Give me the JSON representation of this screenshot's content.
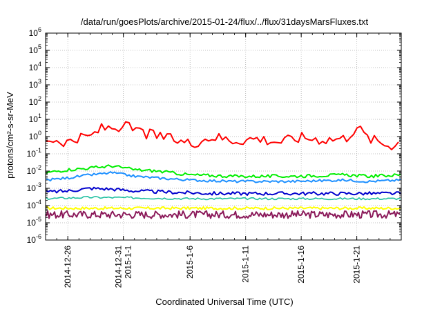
{
  "chart_data": {
    "type": "line",
    "title": "/data/run/goesPlots/archive/2015-01-24/flux/../flux/31daysMarsFluxes.txt",
    "xlabel": "Coordinated Universal Time (UTC)",
    "ylabel": "protons/cm²-s-sr-MeV",
    "yscale": "log",
    "ylim": [
      1e-06,
      1000000.0
    ],
    "xlim": [
      "2014-12-24",
      "2015-01-25"
    ],
    "grid": true,
    "yticks": [
      {
        "base": "10",
        "exp": "-6"
      },
      {
        "base": "10",
        "exp": "-5"
      },
      {
        "base": "10",
        "exp": "-4"
      },
      {
        "base": "10",
        "exp": "-3"
      },
      {
        "base": "10",
        "exp": "-2"
      },
      {
        "base": "10",
        "exp": "-1"
      },
      {
        "base": "10",
        "exp": "0"
      },
      {
        "base": "10",
        "exp": "1"
      },
      {
        "base": "10",
        "exp": "2"
      },
      {
        "base": "10",
        "exp": "3"
      },
      {
        "base": "10",
        "exp": "4"
      },
      {
        "base": "10",
        "exp": "5"
      },
      {
        "base": "10",
        "exp": "6"
      }
    ],
    "xticks": [
      {
        "lines": [
          "2014-12-26"
        ],
        "date": "2014-12-26"
      },
      {
        "lines": [
          "2014-12-31",
          "2015-1-1"
        ],
        "date": "2014-12-31"
      },
      {
        "lines": [
          "2015-1-6"
        ],
        "date": "2015-01-06"
      },
      {
        "lines": [
          "2015-1-11"
        ],
        "date": "2015-01-11"
      },
      {
        "lines": [
          "2015-1-16"
        ],
        "date": "2015-01-16"
      },
      {
        "lines": [
          "2015-1-21"
        ],
        "date": "2015-01-21"
      }
    ],
    "series": [
      {
        "color": "#ff0000",
        "x": [
          "2014-12-24",
          "2014-12-26",
          "2014-12-28",
          "2014-12-29",
          "2014-12-31",
          "2015-01-02",
          "2015-01-04",
          "2015-01-06",
          "2015-01-08",
          "2015-01-10",
          "2015-01-12",
          "2015-01-14",
          "2015-01-16",
          "2015-01-18",
          "2015-01-20",
          "2015-01-21",
          "2015-01-22",
          "2015-01-24",
          "2015-01-25"
        ],
        "values": [
          0.8,
          0.5,
          1.0,
          3.0,
          4.0,
          1.5,
          0.8,
          0.4,
          1.0,
          0.6,
          0.8,
          0.5,
          0.9,
          0.7,
          0.8,
          4.0,
          0.8,
          0.3,
          0.6
        ]
      },
      {
        "color": "#00ee00",
        "x": [
          "2014-12-24",
          "2014-12-26",
          "2014-12-28",
          "2014-12-30",
          "2015-01-01",
          "2015-01-03",
          "2015-01-06",
          "2015-01-10",
          "2015-01-15",
          "2015-01-20",
          "2015-01-22",
          "2015-01-25"
        ],
        "values": [
          0.008,
          0.012,
          0.015,
          0.02,
          0.012,
          0.01,
          0.006,
          0.005,
          0.005,
          0.006,
          0.005,
          0.006
        ]
      },
      {
        "color": "#1e90ff",
        "x": [
          "2014-12-24",
          "2014-12-26",
          "2014-12-28",
          "2014-12-30",
          "2015-01-01",
          "2015-01-03",
          "2015-01-06",
          "2015-01-10",
          "2015-01-15",
          "2015-01-20",
          "2015-01-22",
          "2015-01-25"
        ],
        "values": [
          0.003,
          0.004,
          0.006,
          0.008,
          0.005,
          0.004,
          0.003,
          0.0025,
          0.0025,
          0.003,
          0.0025,
          0.003
        ]
      },
      {
        "color": "#0000cd",
        "x": [
          "2014-12-24",
          "2014-12-26",
          "2014-12-28",
          "2014-12-30",
          "2015-01-01",
          "2015-01-04",
          "2015-01-08",
          "2015-01-12",
          "2015-01-16",
          "2015-01-20",
          "2015-01-25"
        ],
        "values": [
          0.0006,
          0.0007,
          0.001,
          0.0009,
          0.0007,
          0.0006,
          0.0005,
          0.0005,
          0.0005,
          0.0005,
          0.0005
        ]
      },
      {
        "color": "#20c0a0",
        "x": [
          "2014-12-24",
          "2014-12-28",
          "2015-01-01",
          "2015-01-06",
          "2015-01-11",
          "2015-01-16",
          "2015-01-21",
          "2015-01-25"
        ],
        "values": [
          0.00025,
          0.0003,
          0.00028,
          0.00025,
          0.00025,
          0.00025,
          0.00025,
          0.00025
        ]
      },
      {
        "color": "#ffff00",
        "x": [
          "2014-12-24",
          "2015-01-25"
        ],
        "values": [
          7e-05,
          7e-05
        ]
      },
      {
        "color": "#8b1a5a",
        "x": [
          "2014-12-24",
          "2015-01-25"
        ],
        "values": [
          3e-05,
          3e-05
        ]
      }
    ]
  }
}
